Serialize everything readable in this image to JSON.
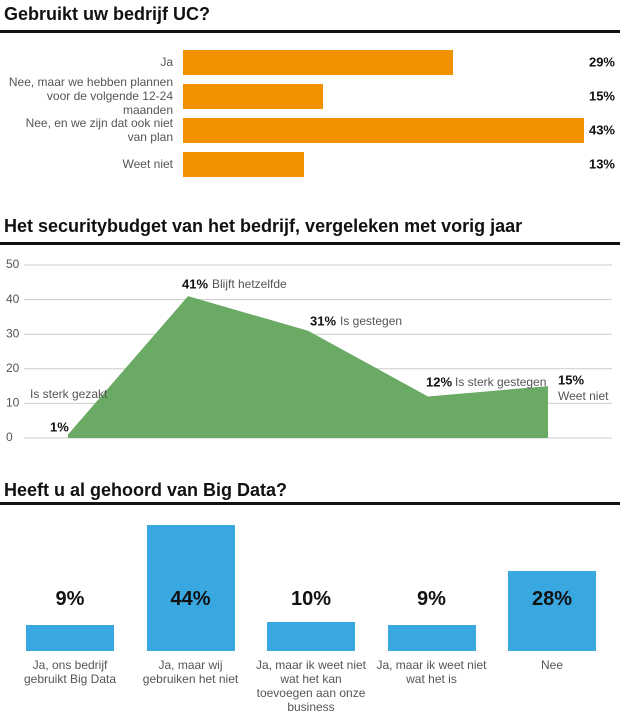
{
  "chart_data": [
    {
      "type": "hbar",
      "title": "Gebruikt uw bedrijf UC?",
      "categories": [
        "Ja",
        "Nee, maar we hebben plannen voor de volgende 12-24 maanden",
        "Nee, en we zijn dat ook niet van plan",
        "Weet niet"
      ],
      "values": [
        29,
        15,
        43,
        13
      ],
      "value_labels": [
        "29%",
        "15%",
        "43%",
        "13%"
      ],
      "color": "#f39200"
    },
    {
      "type": "area",
      "title": "Het securitybudget van het bedrijf, vergeleken met vorig jaar",
      "categories": [
        "Is sterk gezakt",
        "Blijft hetzelfde",
        "Is gestegen",
        "Is sterk gestegen",
        "Weet niet"
      ],
      "values": [
        1,
        41,
        31,
        12,
        15
      ],
      "value_labels": [
        "1%",
        "41%",
        "31%",
        "12%",
        "15%"
      ],
      "color": "#6aaa64",
      "ylim": [
        0,
        50
      ],
      "yticks": [
        0,
        10,
        20,
        30,
        40,
        50
      ],
      "grid": true
    },
    {
      "type": "bar",
      "title": "Heeft u al gehoord van Big Data?",
      "categories": [
        "Ja, ons bedrijf gebruikt Big Data",
        "Ja, maar wij gebruiken het niet",
        "Ja, maar ik weet niet wat het kan toevoegen aan onze business",
        "Ja, maar ik weet niet wat het is",
        "Nee"
      ],
      "values": [
        9,
        44,
        10,
        9,
        28
      ],
      "value_labels": [
        "9%",
        "44%",
        "10%",
        "9%",
        "28%"
      ],
      "color": "#3aa8e0"
    }
  ]
}
